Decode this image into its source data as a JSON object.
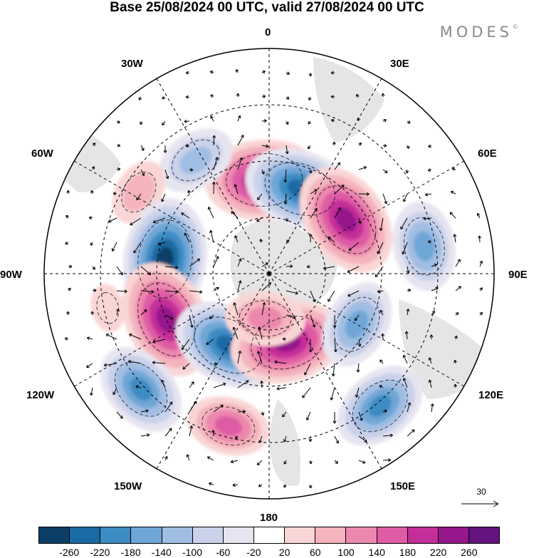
{
  "title": "Base 25/08/2024 00 UTC, valid 27/08/2024 00 UTC",
  "logo": "MODES",
  "logo_mark": "©",
  "projection": "north polar stereographic",
  "longitude_labels": {
    "l0": "0",
    "l30e": "30E",
    "l60e": "60E",
    "l90e": "90E",
    "l120e": "120E",
    "l150e": "150E",
    "l180": "180",
    "l150w": "150W",
    "l120w": "120W",
    "l90w": "90W",
    "l60w": "60W",
    "l30w": "30W"
  },
  "colorbar": {
    "colors": [
      "#0d3f66",
      "#1a6aa4",
      "#3d8cc4",
      "#6ea6d6",
      "#a0bde3",
      "#c9d2ea",
      "#e6e4f0",
      "#ffffff",
      "#f9d6d5",
      "#f4b3bd",
      "#ec88ae",
      "#df5ca5",
      "#c42e98",
      "#96168c",
      "#64127d"
    ],
    "ticks": [
      "-260",
      "-220",
      "-180",
      "-140",
      "-100",
      "-60",
      "-20",
      "20",
      "60",
      "100",
      "140",
      "180",
      "220",
      "260"
    ]
  },
  "vector_scale_label": "30",
  "anomaly_cells": [
    {
      "lon": 357,
      "colat": 25,
      "value": 250
    },
    {
      "lon": 20,
      "colat": 24,
      "value": -230
    },
    {
      "lon": 55,
      "colat": 25,
      "value": 240
    },
    {
      "lon": 80,
      "colat": 42,
      "value": -160
    },
    {
      "lon": 327,
      "colat": 36,
      "value": -130
    },
    {
      "lon": 302,
      "colat": 41,
      "value": 90
    },
    {
      "lon": 278,
      "colat": 28,
      "value": -260
    },
    {
      "lon": 246,
      "colat": 30,
      "value": 250
    },
    {
      "lon": 210,
      "colat": 22,
      "value": -230
    },
    {
      "lon": 165,
      "colat": 19,
      "value": 240
    },
    {
      "lon": 185,
      "colat": 12,
      "value": 130
    },
    {
      "lon": 120,
      "colat": 27,
      "value": -160
    },
    {
      "lon": 140,
      "colat": 46,
      "value": -180
    },
    {
      "lon": 228,
      "colat": 46,
      "value": -180
    },
    {
      "lon": 195,
      "colat": 42,
      "value": 140
    },
    {
      "lon": 258,
      "colat": 44,
      "value": 30
    }
  ]
}
